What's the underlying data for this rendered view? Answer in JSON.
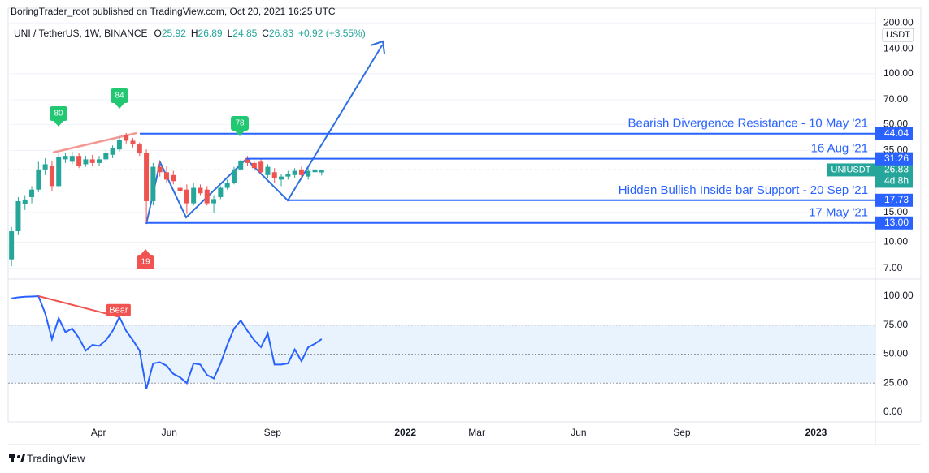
{
  "header": {
    "published": "BoringTrader_root published on TradingView.com, Oct 20, 2021 16:25 UTC",
    "symbol": "UNI / TetherUS, 1W, BINANCE",
    "ohlc_keys": [
      "O",
      "H",
      "L",
      "C"
    ],
    "change": "+0.92 (+3.55%)",
    "currency": "USDT",
    "symbol_tag": "UNIUSDT",
    "countdown": "4d 8h"
  },
  "chart_data": [
    {
      "type": "candlestick",
      "log_scale": true,
      "up_color": "#26a69a",
      "down_color": "#ef5350",
      "xlim": [
        -0.5,
        128.1
      ],
      "ylim": [
        6.1,
        245
      ],
      "yticks": [
        {
          "value": 200,
          "label": "200.00"
        },
        {
          "value": 140,
          "label": "140.00"
        },
        {
          "value": 100,
          "label": "100.00"
        },
        {
          "value": 70,
          "label": "70.00"
        },
        {
          "value": 50,
          "label": "50.00"
        },
        {
          "value": 35,
          "label": "35.00"
        },
        {
          "value": 15,
          "label": "15.00"
        },
        {
          "value": 10,
          "label": "10.00"
        },
        {
          "value": 7,
          "label": "7.00"
        }
      ],
      "open": [
        7.9,
        11.6,
        16.8,
        18.5,
        20.5,
        27,
        28.5,
        21.5,
        31,
        30,
        32.5,
        29,
        31,
        29.5,
        31,
        33,
        35.5,
        43.5,
        40,
        38,
        34,
        17.5,
        28,
        26,
        25,
        21,
        20.5,
        17,
        21,
        20.5,
        17,
        18.5,
        21,
        22.5,
        27,
        31.5,
        29.5,
        30,
        25,
        26,
        23.5,
        24.5,
        25,
        27,
        24.5,
        26,
        25.92
      ],
      "high": [
        12.3,
        18.5,
        19,
        21.5,
        30,
        31.5,
        30.5,
        33.5,
        34,
        34.5,
        34,
        32.5,
        33,
        32.5,
        35.5,
        37.5,
        42,
        44.5,
        41.5,
        39,
        35.5,
        29.5,
        30,
        28.5,
        26.5,
        23.5,
        22,
        22.5,
        22,
        21.5,
        19,
        21.5,
        23.5,
        28,
        31,
        32.5,
        30.5,
        31,
        29,
        27.5,
        25.5,
        26.5,
        27.5,
        28,
        27.5,
        28,
        26.89
      ],
      "low": [
        7.2,
        11,
        15.5,
        17,
        19.8,
        25,
        20,
        21,
        29.5,
        29,
        27.5,
        28,
        28.5,
        28.5,
        30,
        31.5,
        34.5,
        38.5,
        36.5,
        32.5,
        13,
        16.5,
        24.5,
        22.5,
        22,
        19.5,
        14.7,
        16.5,
        19,
        16.5,
        15,
        18,
        20.5,
        22,
        26.5,
        28.5,
        26.5,
        25.5,
        24,
        22.5,
        21.5,
        23.5,
        24,
        24,
        23.5,
        25,
        24.85
      ],
      "close": [
        11.6,
        17.5,
        17.9,
        20.5,
        27,
        29,
        21.5,
        32,
        32.5,
        32.5,
        28.5,
        31,
        29.5,
        31,
        34,
        36,
        40.5,
        40,
        38,
        34,
        17.5,
        28,
        26,
        23.5,
        23,
        20,
        17,
        21,
        19.5,
        17,
        18,
        21,
        22.5,
        27,
        30.5,
        29.5,
        27.5,
        26,
        28,
        24,
        24.5,
        25.5,
        26.5,
        25,
        26.5,
        27,
        26.83
      ],
      "levels": [
        {
          "value": 44.04,
          "label": "44.04",
          "note": "Bearish Divergence Resistance - 10 May '21"
        },
        {
          "value": 31.26,
          "label": "31.26",
          "note": "16 Aug '21"
        },
        {
          "value": 17.73,
          "label": "17.73",
          "note": "Hidden Bullish Inside bar Support - 20 Sep '21"
        },
        {
          "value": 13,
          "label": "13.00",
          "note": "17 May '21"
        }
      ],
      "markers": [
        {
          "value": 80
        },
        {
          "value": 84
        },
        {
          "value": 78
        },
        {
          "value": 19
        }
      ]
    },
    {
      "type": "line",
      "xlim": [
        -0.5,
        128.1
      ],
      "ylim": [
        -8.4,
        114
      ],
      "yticks": [
        {
          "value": 100,
          "label": "100.00"
        },
        {
          "value": 75,
          "label": "75.00"
        },
        {
          "value": 50,
          "label": "50.00"
        },
        {
          "value": 25,
          "label": "25.00"
        },
        {
          "value": 0,
          "label": "0.00"
        }
      ],
      "band": [
        25,
        75
      ],
      "annotation": "Bear",
      "series": [
        {
          "color": "#2962ff",
          "values": [
            98,
            99,
            99.5,
            99.7,
            100,
            85,
            63,
            81,
            69,
            72,
            64,
            53,
            58,
            57,
            62,
            70,
            82,
            70,
            62,
            53,
            20,
            42,
            43,
            40,
            33,
            30,
            25,
            42,
            41,
            32,
            29,
            42,
            58,
            72,
            79,
            70,
            62,
            56,
            68,
            41,
            41,
            42,
            54,
            44,
            56,
            59,
            63
          ]
        }
      ],
      "xticks": [
        {
          "value": 12.9,
          "label": "Apr"
        },
        {
          "value": 23.4,
          "label": "Jun"
        },
        {
          "value": 38.7,
          "label": "Sep"
        },
        {
          "value": 58.4,
          "label": "2022"
        },
        {
          "value": 69.0,
          "label": "Mar"
        },
        {
          "value": 84.1,
          "label": "Jun"
        },
        {
          "value": 99.4,
          "label": "Sep"
        },
        {
          "value": 119.3,
          "label": "2023"
        }
      ]
    }
  ],
  "footer": {
    "brand": "TradingView"
  }
}
